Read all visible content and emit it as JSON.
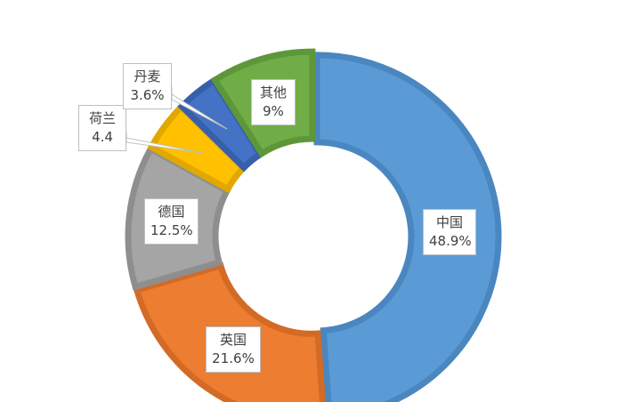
{
  "chart_data": {
    "type": "pie",
    "variant": "doughnut",
    "start_angle": "12 o'clock, clockwise",
    "legend": "none",
    "slices": [
      {
        "name": "中国",
        "value": 48.9,
        "label": "48.9%",
        "color": "#5B9BD5",
        "border": "#4A86C0"
      },
      {
        "name": "英国",
        "value": 21.6,
        "label": "21.6%",
        "color": "#ED7D31",
        "border": "#D36A26"
      },
      {
        "name": "德国",
        "value": 12.5,
        "label": "12.5%",
        "color": "#A5A5A5",
        "border": "#8E8E8E"
      },
      {
        "name": "荷兰",
        "value": 4.4,
        "label": "4.4",
        "color": "#FFC000",
        "border": "#E0A800"
      },
      {
        "name": "丹麦",
        "value": 3.6,
        "label": "3.6%",
        "color": "#4472C4",
        "border": "#375FAA"
      },
      {
        "name": "其他",
        "value": 9,
        "label": "9%",
        "color": "#70AD47",
        "border": "#5E973A"
      }
    ]
  }
}
